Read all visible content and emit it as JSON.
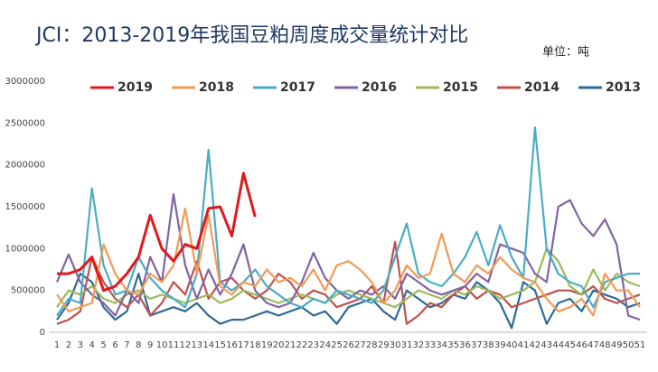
{
  "chart_data": {
    "type": "line",
    "title": "JCI：2013-2019年我国豆粕周度成交量统计对比",
    "unit": "单位：吨",
    "categories": [
      "1",
      "2",
      "3",
      "4",
      "5",
      "6",
      "7",
      "8",
      "9",
      "10",
      "11",
      "12",
      "13",
      "14",
      "15",
      "16",
      "17",
      "18",
      "19",
      "20",
      "21",
      "22",
      "23",
      "24",
      "25",
      "26",
      "27",
      "28",
      "29",
      "30",
      "31",
      "32",
      "33",
      "34",
      "35",
      "36",
      "37",
      "38",
      "39",
      "40",
      "41",
      "42",
      "43",
      "44",
      "45",
      "46",
      "47",
      "48",
      "49",
      "50",
      "51"
    ],
    "ylim": [
      0,
      3000000
    ],
    "yticks": [
      0,
      500000,
      1000000,
      1500000,
      2000000,
      2500000,
      3000000
    ],
    "series": [
      {
        "name": "2019",
        "color": "#e0191c",
        "values": [
          700000,
          700000,
          750000,
          900000,
          500000,
          550000,
          700000,
          900000,
          1400000,
          1000000,
          850000,
          1050000,
          1000000,
          1480000,
          1500000,
          1150000,
          1900000,
          1380000,
          null,
          null,
          null,
          null,
          null,
          null,
          null,
          null,
          null,
          null,
          null,
          null,
          null,
          null,
          null,
          null,
          null,
          null,
          null,
          null,
          null,
          null,
          null,
          null,
          null,
          null,
          null,
          null,
          null,
          null,
          null,
          null,
          null
        ]
      },
      {
        "name": "2018",
        "color": "#f39a56",
        "values": [
          450000,
          250000,
          300000,
          350000,
          1050000,
          700000,
          500000,
          450000,
          700000,
          600000,
          800000,
          1480000,
          700000,
          1400000,
          550000,
          450000,
          600000,
          550000,
          750000,
          600000,
          650000,
          550000,
          750000,
          500000,
          800000,
          850000,
          750000,
          600000,
          350000,
          500000,
          800000,
          650000,
          700000,
          1180000,
          700000,
          600000,
          800000,
          700000,
          900000,
          750000,
          650000,
          600000,
          400000,
          250000,
          300000,
          400000,
          200000,
          700000,
          500000,
          500000,
          300000
        ]
      },
      {
        "name": "2017",
        "color": "#4bacc6",
        "values": [
          200000,
          400000,
          350000,
          1720000,
          800000,
          450000,
          500000,
          900000,
          650000,
          500000,
          400000,
          300000,
          700000,
          2180000,
          600000,
          500000,
          600000,
          750000,
          550000,
          450000,
          350000,
          300000,
          400000,
          350000,
          500000,
          450000,
          400000,
          350000,
          500000,
          900000,
          1300000,
          700000,
          600000,
          550000,
          700000,
          900000,
          1200000,
          800000,
          1280000,
          900000,
          650000,
          2450000,
          1000000,
          700000,
          600000,
          550000,
          300000,
          600000,
          650000,
          700000,
          700000
        ]
      },
      {
        "name": "2016",
        "color": "#8064a2",
        "values": [
          600000,
          930000,
          600000,
          450000,
          350000,
          200000,
          500000,
          350000,
          900000,
          600000,
          1650000,
          800000,
          400000,
          750000,
          450000,
          700000,
          1050000,
          500000,
          350000,
          300000,
          350000,
          600000,
          950000,
          650000,
          500000,
          400000,
          500000,
          450000,
          550000,
          400000,
          700000,
          600000,
          500000,
          450000,
          500000,
          550000,
          700000,
          600000,
          1050000,
          1000000,
          950000,
          700000,
          600000,
          1500000,
          1580000,
          1300000,
          1150000,
          1350000,
          1050000,
          200000,
          150000
        ]
      },
      {
        "name": "2015",
        "color": "#9bbb59",
        "values": [
          300000,
          500000,
          450000,
          550000,
          400000,
          350000,
          450000,
          500000,
          400000,
          450000,
          400000,
          350000,
          400000,
          450000,
          350000,
          400000,
          500000,
          450000,
          400000,
          350000,
          400000,
          450000,
          400000,
          350000,
          450000,
          500000,
          450000,
          400000,
          350000,
          300000,
          400000,
          500000,
          450000,
          400000,
          500000,
          450000,
          550000,
          500000,
          400000,
          450000,
          500000,
          600000,
          1000000,
          850000,
          550000,
          450000,
          750000,
          500000,
          700000,
          600000,
          550000
        ]
      },
      {
        "name": "2014",
        "color": "#c0504d",
        "values": [
          100000,
          150000,
          250000,
          900000,
          600000,
          400000,
          300000,
          450000,
          200000,
          350000,
          600000,
          450000,
          850000,
          400000,
          600000,
          650000,
          500000,
          400000,
          500000,
          700000,
          600000,
          400000,
          500000,
          450000,
          300000,
          350000,
          400000,
          550000,
          350000,
          1080000,
          100000,
          200000,
          350000,
          300000,
          450000,
          550000,
          400000,
          500000,
          450000,
          300000,
          350000,
          400000,
          450000,
          500000,
          500000,
          450000,
          550000,
          400000,
          350000,
          400000,
          450000
        ]
      },
      {
        "name": "2013",
        "color": "#2f6a98",
        "values": [
          150000,
          350000,
          700000,
          600000,
          300000,
          150000,
          250000,
          700000,
          200000,
          250000,
          300000,
          250000,
          350000,
          200000,
          100000,
          150000,
          150000,
          200000,
          250000,
          200000,
          250000,
          300000,
          200000,
          250000,
          100000,
          300000,
          350000,
          400000,
          250000,
          150000,
          500000,
          400000,
          300000,
          350000,
          450000,
          400000,
          600000,
          500000,
          350000,
          50000,
          600000,
          500000,
          100000,
          350000,
          400000,
          250000,
          500000,
          450000,
          400000,
          300000,
          350000
        ]
      }
    ]
  }
}
